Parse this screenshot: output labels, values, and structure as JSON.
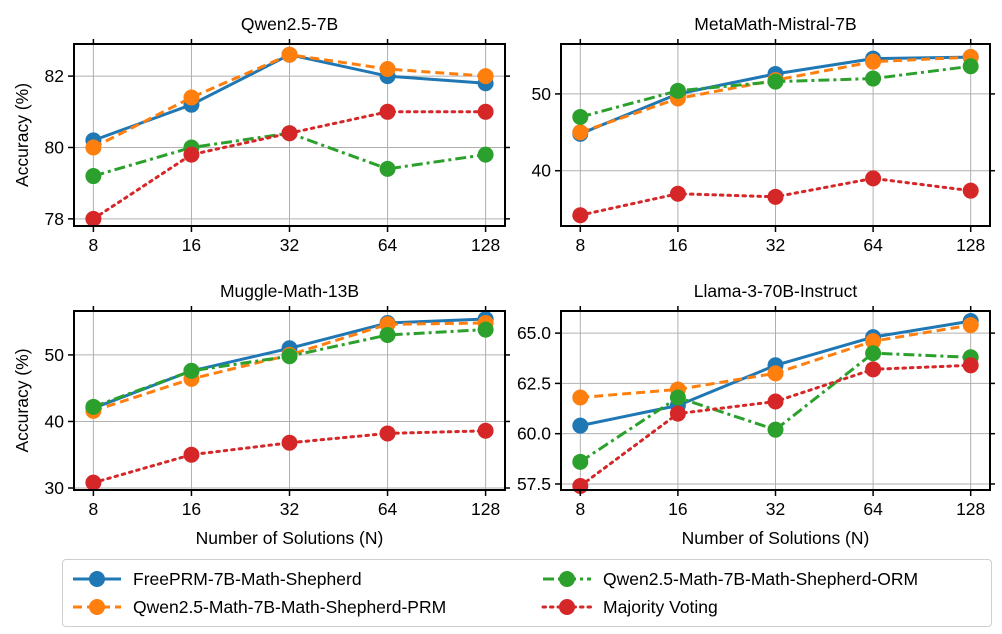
{
  "figure": {
    "xlabel_bottom": "Number of Solutions (N)",
    "ylabel_left": "Accuracy (%)"
  },
  "series_styles": [
    {
      "name": "FreePRM-7B-Math-Shepherd",
      "color": "#1f77b4",
      "dash": "solid"
    },
    {
      "name": "Qwen2.5-Math-7B-Math-Shepherd-PRM",
      "color": "#ff7f0e",
      "dash": "dashed"
    },
    {
      "name": "Qwen2.5-Math-7B-Math-Shepherd-ORM",
      "color": "#2ca02c",
      "dash": "dashdot"
    },
    {
      "name": "Majority Voting",
      "color": "#d62728",
      "dash": "dotted"
    }
  ],
  "legend": {
    "items": [
      "FreePRM-7B-Math-Shepherd",
      "Qwen2.5-Math-7B-Math-Shepherd-PRM",
      "Qwen2.5-Math-7B-Math-Shepherd-ORM",
      "Majority Voting"
    ]
  },
  "chart_data": [
    {
      "type": "line",
      "title": "Qwen2.5-7B",
      "x": [
        "8",
        "16",
        "32",
        "64",
        "128"
      ],
      "ylabel": "Accuracy (%)",
      "xlabel": "",
      "ylim": [
        77.8,
        82.9
      ],
      "yticks": [
        78,
        80,
        82
      ],
      "ytick_labels": [
        "78",
        "80",
        "82"
      ],
      "grid": true,
      "series": [
        {
          "name": "FreePRM-7B-Math-Shepherd",
          "values": [
            80.2,
            81.2,
            82.6,
            82.0,
            81.8
          ]
        },
        {
          "name": "Qwen2.5-Math-7B-Math-Shepherd-PRM",
          "values": [
            80.0,
            81.4,
            82.6,
            82.2,
            82.0
          ]
        },
        {
          "name": "Qwen2.5-Math-7B-Math-Shepherd-ORM",
          "values": [
            79.2,
            80.0,
            80.4,
            79.4,
            79.8
          ]
        },
        {
          "name": "Majority Voting",
          "values": [
            78.0,
            79.8,
            80.4,
            81.0,
            81.0
          ]
        }
      ]
    },
    {
      "type": "line",
      "title": "MetaMath-Mistral-7B",
      "x": [
        "8",
        "16",
        "32",
        "64",
        "128"
      ],
      "ylabel": "",
      "xlabel": "",
      "ylim": [
        32.8,
        56.5
      ],
      "yticks": [
        40,
        50
      ],
      "ytick_labels": [
        "40",
        "50"
      ],
      "grid": true,
      "series": [
        {
          "name": "FreePRM-7B-Math-Shepherd",
          "values": [
            44.8,
            50.0,
            52.6,
            54.6,
            54.8
          ]
        },
        {
          "name": "Qwen2.5-Math-7B-Math-Shepherd-PRM",
          "values": [
            45.0,
            49.4,
            51.8,
            54.2,
            54.8
          ]
        },
        {
          "name": "Qwen2.5-Math-7B-Math-Shepherd-ORM",
          "values": [
            47.0,
            50.4,
            51.6,
            52.0,
            53.6
          ]
        },
        {
          "name": "Majority Voting",
          "values": [
            34.2,
            37.0,
            36.6,
            39.0,
            37.4
          ]
        }
      ]
    },
    {
      "type": "line",
      "title": "Muggle-Math-13B",
      "x": [
        "8",
        "16",
        "32",
        "64",
        "128"
      ],
      "ylabel": "Accuracy (%)",
      "xlabel": "Number of Solutions (N)",
      "ylim": [
        29.7,
        56.6
      ],
      "yticks": [
        30,
        40,
        50
      ],
      "ytick_labels": [
        "30",
        "40",
        "50"
      ],
      "grid": true,
      "series": [
        {
          "name": "FreePRM-7B-Math-Shepherd",
          "values": [
            42.0,
            47.6,
            51.0,
            54.8,
            55.4
          ]
        },
        {
          "name": "Qwen2.5-Math-7B-Math-Shepherd-PRM",
          "values": [
            41.6,
            46.4,
            50.0,
            54.6,
            54.8
          ]
        },
        {
          "name": "Qwen2.5-Math-7B-Math-Shepherd-ORM",
          "values": [
            42.2,
            47.6,
            49.8,
            53.0,
            53.8
          ]
        },
        {
          "name": "Majority Voting",
          "values": [
            30.8,
            35.0,
            36.8,
            38.2,
            38.6
          ]
        }
      ]
    },
    {
      "type": "line",
      "title": "Llama-3-70B-Instruct",
      "x": [
        "8",
        "16",
        "32",
        "64",
        "128"
      ],
      "ylabel": "",
      "xlabel": "Number of Solutions (N)",
      "ylim": [
        57.2,
        66.1
      ],
      "yticks": [
        57.5,
        60.0,
        62.5,
        65.0
      ],
      "ytick_labels": [
        "57.5",
        "60.0",
        "62.5",
        "65.0"
      ],
      "grid": true,
      "series": [
        {
          "name": "FreePRM-7B-Math-Shepherd",
          "values": [
            60.4,
            61.4,
            63.4,
            64.8,
            65.6
          ]
        },
        {
          "name": "Qwen2.5-Math-7B-Math-Shepherd-PRM",
          "values": [
            61.8,
            62.2,
            63.0,
            64.6,
            65.4
          ]
        },
        {
          "name": "Qwen2.5-Math-7B-Math-Shepherd-ORM",
          "values": [
            58.6,
            61.8,
            60.2,
            64.0,
            63.8
          ]
        },
        {
          "name": "Majority Voting",
          "values": [
            57.4,
            61.0,
            61.6,
            63.2,
            63.4
          ]
        }
      ]
    }
  ]
}
